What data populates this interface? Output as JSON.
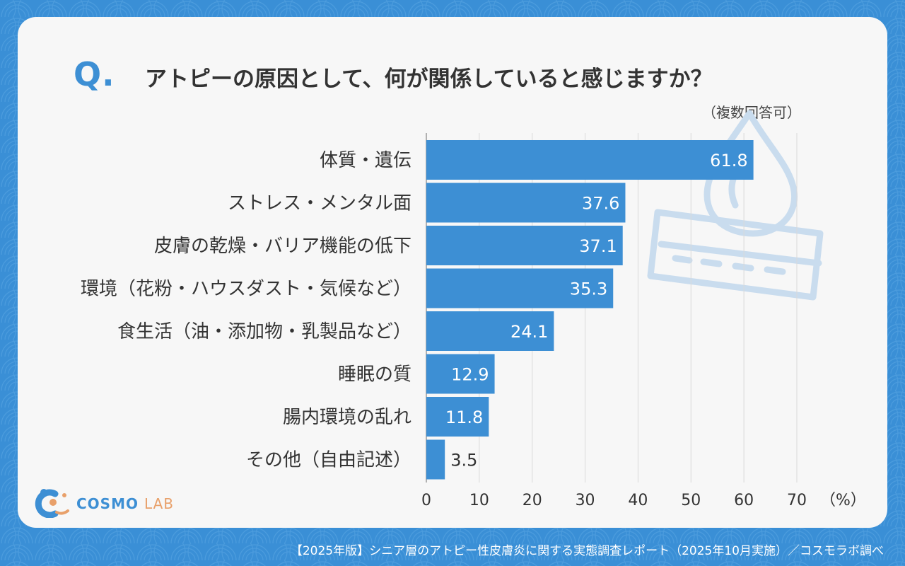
{
  "question": {
    "mark": "Q.",
    "title": "アトピーの原因として、何が関係していると感じますか？",
    "note": "（複数回答可）"
  },
  "chart_data": {
    "type": "bar",
    "orientation": "horizontal",
    "categories": [
      "体質・遺伝",
      "ストレス・メンタル面",
      "皮膚の乾燥・バリア機能の低下",
      "環境（花粉・ハウスダスト・気候など）",
      "食生活（油・添加物・乳製品など）",
      "睡眠の質",
      "腸内環境の乱れ",
      "その他（自由記述）"
    ],
    "values": [
      61.8,
      37.6,
      37.1,
      35.3,
      24.1,
      12.9,
      11.8,
      3.5
    ],
    "value_labels": [
      "61.8",
      "37.6",
      "37.1",
      "35.3",
      "24.1",
      "12.9",
      "11.8",
      "3.5"
    ],
    "xlim": [
      0,
      70
    ],
    "xticks": [
      "0",
      "10",
      "20",
      "30",
      "40",
      "50",
      "60",
      "70"
    ],
    "xunit": "（%）",
    "grid": true,
    "bar_color": "#3d8fd4"
  },
  "logo": {
    "main": "COSMO",
    "sub": "LAB"
  },
  "footer": "【2025年版】シニア層のアトピー性皮膚炎に関する実態調査レポート（2025年10月実施）／コスモラボ調べ",
  "colors": {
    "background": "#3a8fd6",
    "card": "#f7f7f7",
    "accent": "#3d8fd4",
    "logo_secondary": "#e8a06a"
  }
}
